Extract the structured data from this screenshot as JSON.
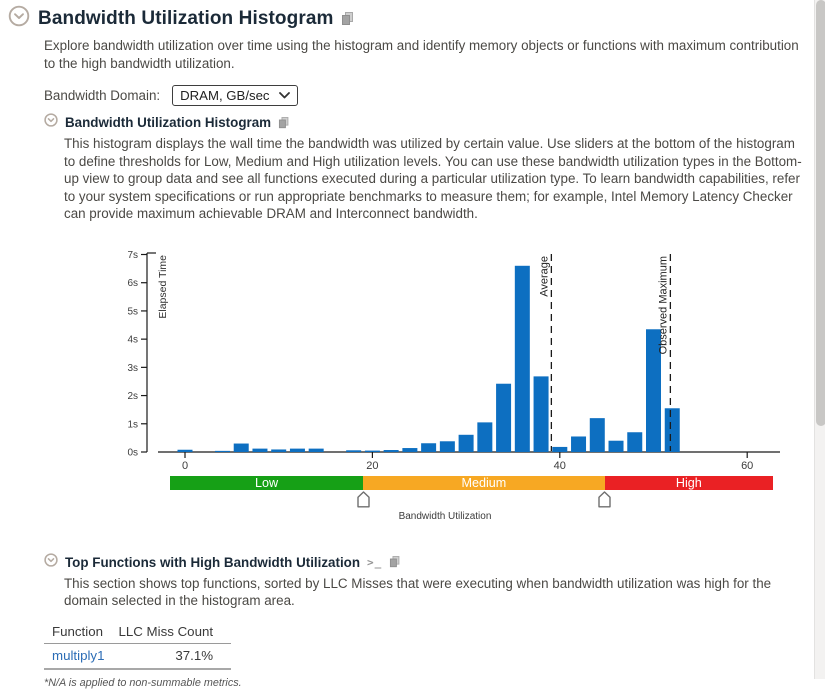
{
  "header": {
    "title": "Bandwidth Utilization Histogram",
    "description": "Explore bandwidth utilization over time using the histogram and identify memory objects or functions with maximum contribution to the high bandwidth utilization."
  },
  "bandwidth_domain": {
    "label": "Bandwidth Domain:",
    "selected": "DRAM, GB/sec"
  },
  "histogram_section": {
    "title": "Bandwidth Utilization Histogram",
    "description": "This histogram displays the wall time the bandwidth was utilized by certain value. Use sliders at the bottom of the histogram to define thresholds for Low, Medium and High utilization levels. You can use these bandwidth utilization types in the Bottom-up view to group data and see all functions executed during a particular utilization type. To learn bandwidth capabilities, refer to your system specifications or run appropriate benchmarks to measure them; for example, Intel Memory Latency Checker can provide maximum achievable DRAM and Interconnect bandwidth."
  },
  "chart_data": {
    "type": "bar",
    "title": "Bandwidth Utilization Histogram",
    "xlabel": "Bandwidth Utilization",
    "ylabel": "Elapsed Time",
    "bar_color": "#0d6fc1",
    "axis_color": "#1a1a1a",
    "xlim": [
      -3,
      63.5
    ],
    "ylim": [
      0,
      7
    ],
    "x_ticks": [
      0,
      20,
      40,
      60
    ],
    "y_ticks": [
      "0s",
      "1s",
      "2s",
      "3s",
      "4s",
      "5s",
      "6s",
      "7s"
    ],
    "bin_width": 2,
    "x": [
      0,
      2,
      4,
      6,
      8,
      10,
      12,
      14,
      16,
      18,
      20,
      22,
      24,
      26,
      28,
      30,
      32,
      34,
      36,
      38,
      40,
      42,
      44,
      46,
      48,
      50,
      52
    ],
    "values": [
      0.08,
      0,
      0.04,
      0.3,
      0.12,
      0.09,
      0.12,
      0.12,
      0,
      0.06,
      0.05,
      0.07,
      0.14,
      0.31,
      0.38,
      0.61,
      1.05,
      2.42,
      6.6,
      2.68,
      0.18,
      0.55,
      1.2,
      0.4,
      0.7,
      4.35,
      1.55
    ],
    "annotations": [
      {
        "label": "Average",
        "x": 39.1
      },
      {
        "label": "Observed Maximum",
        "x": 51.8
      }
    ],
    "thresholds": {
      "low_medium": 19.0,
      "medium_high": 44.8
    },
    "bands": [
      {
        "label": "Low",
        "color": "#16a016"
      },
      {
        "label": "Medium",
        "color": "#f7a823"
      },
      {
        "label": "High",
        "color": "#ea2124"
      }
    ]
  },
  "top_functions_section": {
    "title": "Top Functions with High Bandwidth Utilization",
    "description": "This section shows top functions, sorted by LLC Misses that were executing when bandwidth utilization was high for the domain selected in the histogram area.",
    "table": {
      "columns": {
        "c1": "Function",
        "c2": "LLC Miss Count"
      },
      "rows": [
        {
          "function": "multiply1",
          "llc_miss_count": "37.1%"
        }
      ]
    },
    "footnote": "*N/A is applied to non-summable metrics."
  }
}
